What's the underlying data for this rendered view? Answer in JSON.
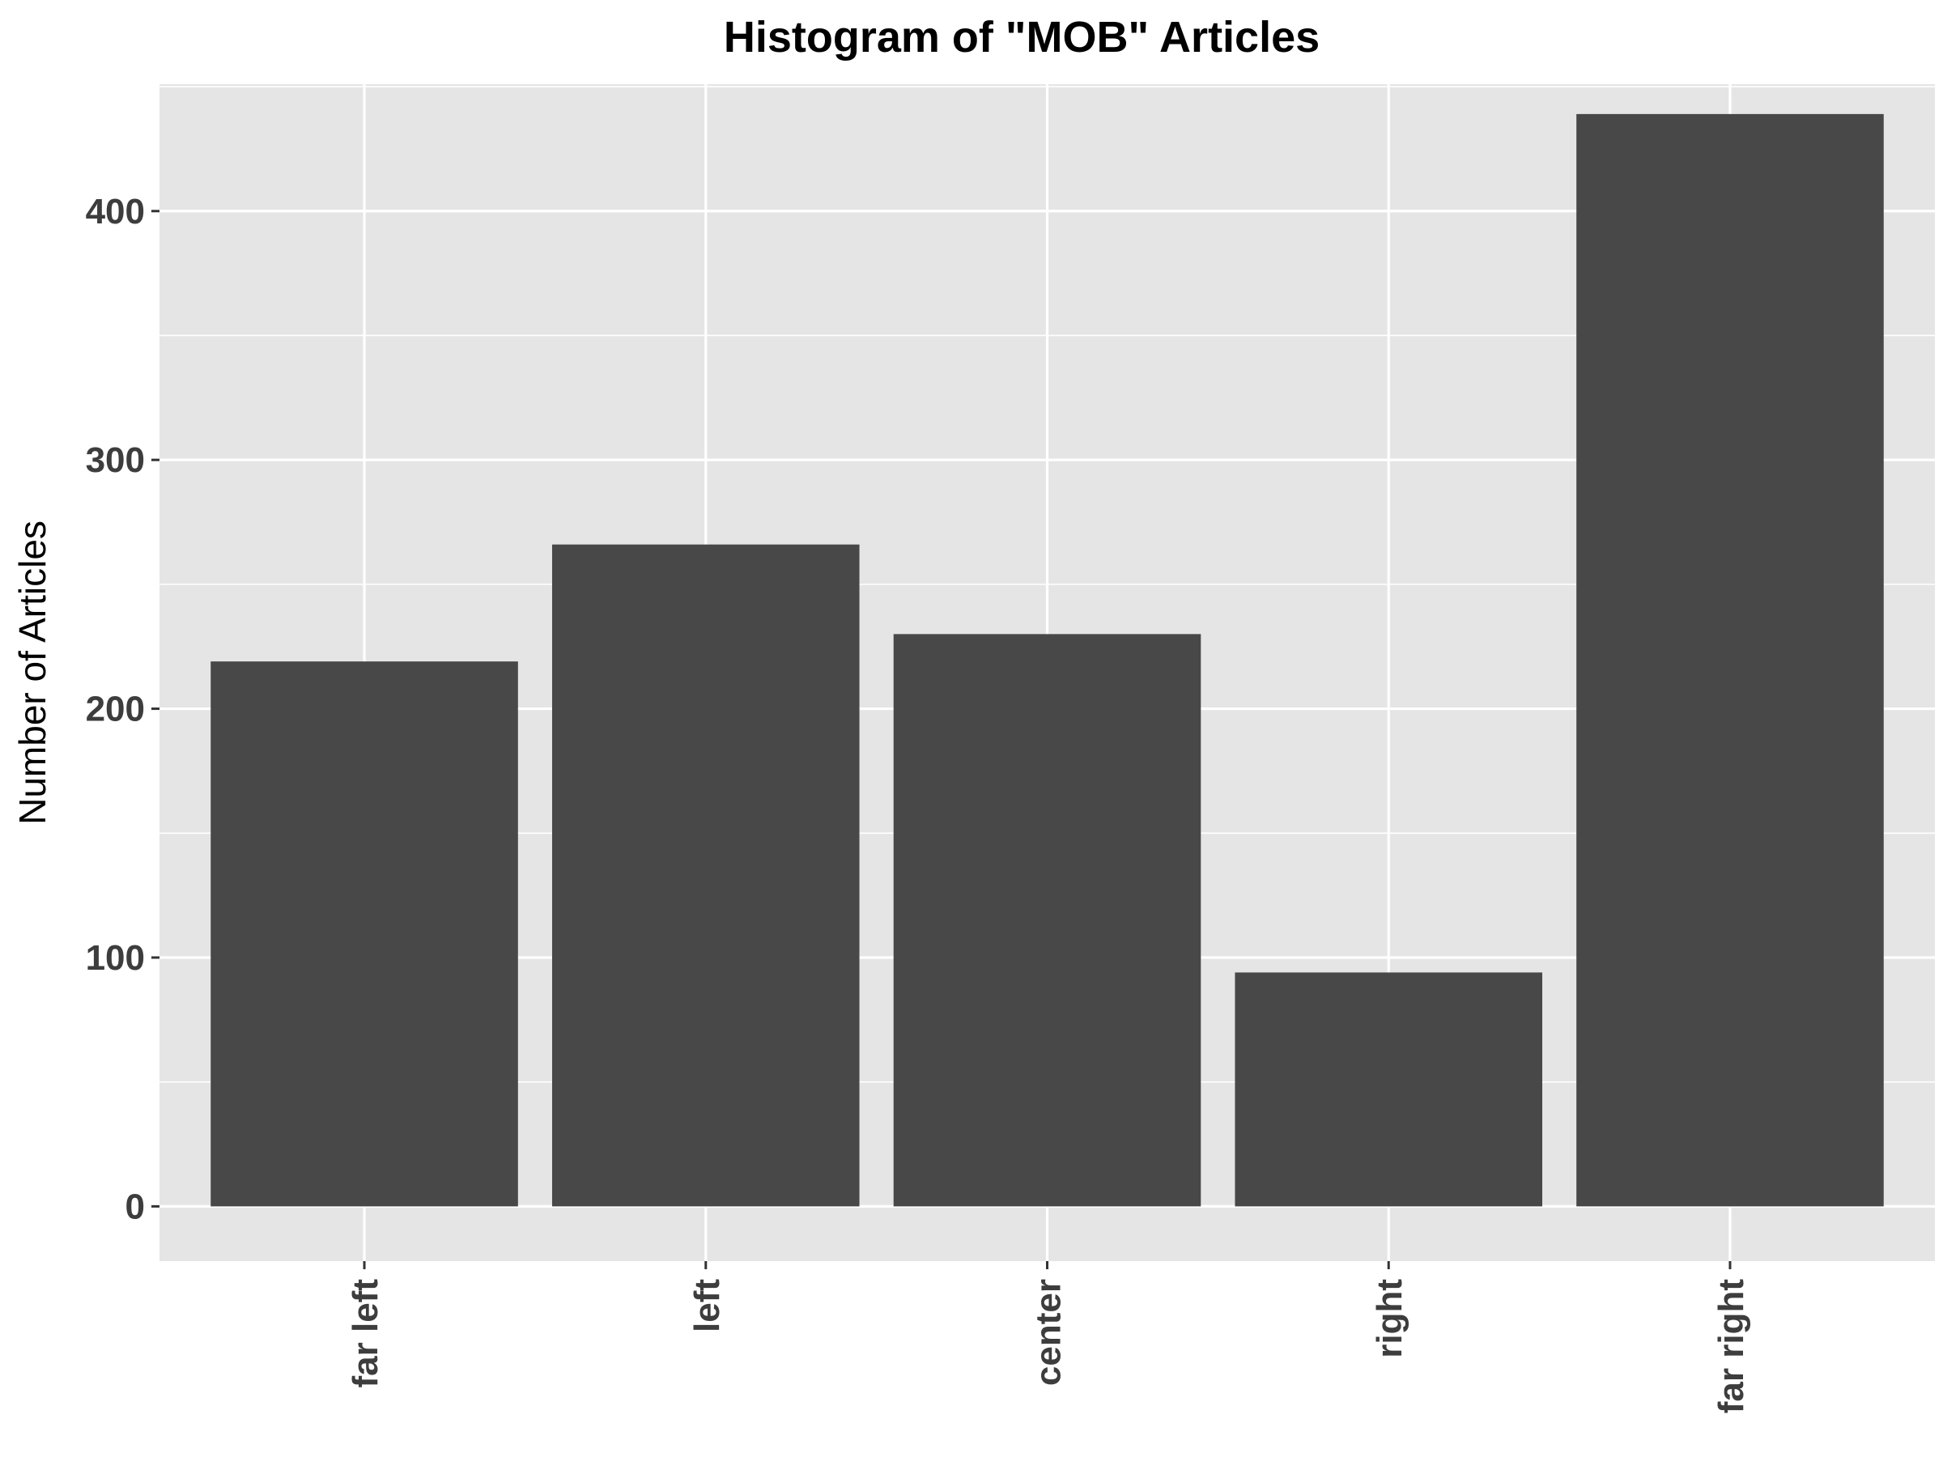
{
  "chart_data": {
    "type": "bar",
    "title": "Histogram of \"MOB\" Articles",
    "xlabel": "",
    "ylabel": "Number of Articles",
    "categories": [
      "far left",
      "left",
      "center",
      "right",
      "far right"
    ],
    "values": [
      219,
      266,
      230,
      94,
      439
    ],
    "ylim": [
      -22,
      451
    ],
    "yticks": [
      0,
      100,
      200,
      300,
      400
    ],
    "grid": true,
    "colors": {
      "panel": "#e5e5e5",
      "grid": "#ffffff",
      "bar": "#484848",
      "tick_text": "#3d3d3d"
    }
  }
}
